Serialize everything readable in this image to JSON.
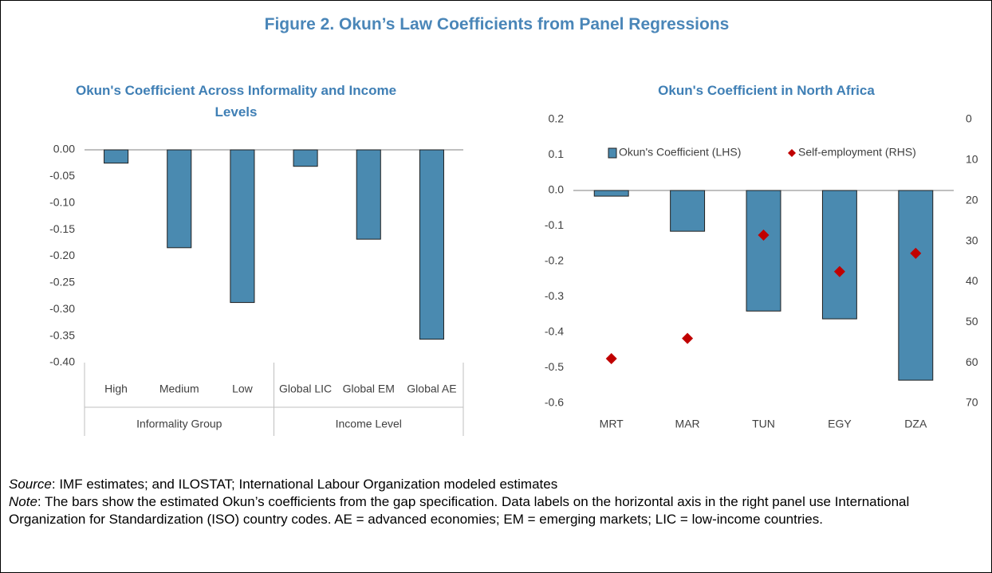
{
  "figure_title": "Figure 2. Okun’s Law Coefficients from Panel Regressions",
  "chart_data": [
    {
      "type": "bar",
      "title": "Okun's Coefficient Across Informality and Income Levels",
      "categories": [
        "High",
        "Medium",
        "Low",
        "Global LIC",
        "Global EM",
        "Global AE"
      ],
      "category_groups": [
        "Informality Group",
        "Income Level"
      ],
      "values": [
        -0.025,
        -0.184,
        -0.287,
        -0.031,
        -0.168,
        -0.356
      ],
      "color": "#4a8ab0",
      "ylim": [
        -0.4,
        0
      ],
      "yticks": [
        {
          "value": 0,
          "label": "0.00"
        },
        -0.05,
        {
          "value": -0.1,
          "label": "-0.10"
        },
        -0.15,
        {
          "value": -0.2,
          "label": "-0.20"
        },
        -0.25,
        {
          "value": -0.3,
          "label": "-0.30"
        },
        -0.35,
        {
          "value": -0.4,
          "label": "-0.40"
        }
      ],
      "grid": false
    },
    {
      "type": "bar",
      "title": "Okun's Coefficient in North Africa",
      "categories": [
        "MRT",
        "MAR",
        "TUN",
        "EGY",
        "DZA"
      ],
      "series": [
        {
          "name": "Okun's Coefficient (LHS)",
          "type": "bar",
          "color": "#4a8ab0",
          "values": [
            -0.016,
            -0.115,
            -0.34,
            -0.362,
            -0.535
          ]
        },
        {
          "name": "Self-employment (RHS)",
          "type": "scatter",
          "color": "#c00000",
          "axis": "y2",
          "values": [
            59,
            54,
            28.5,
            37.5,
            33
          ]
        }
      ],
      "ylim": [
        -0.6,
        0.2
      ],
      "yticks": [
        0.2,
        0.1,
        {
          "value": 0,
          "label": "0.0"
        },
        -0.1,
        -0.2,
        -0.3,
        -0.4,
        -0.5,
        -0.6
      ],
      "y2lim": [
        70,
        0
      ],
      "y2ticks": [
        0,
        10,
        20,
        30,
        40,
        50,
        60,
        70
      ],
      "grid": false,
      "legend": "top"
    }
  ],
  "source": {
    "label": "Source",
    "text": ": IMF estimates; and ILOSTAT; International Labour Organization modeled estimates"
  },
  "note": {
    "label": "Note",
    "text": ": The bars show the estimated Okun’s coefficients from the gap specification. Data labels on the horizontal axis in the right panel use International Organization for Standardization (ISO) country codes. AE = advanced economies; EM = emerging markets; LIC = low-income countries."
  }
}
